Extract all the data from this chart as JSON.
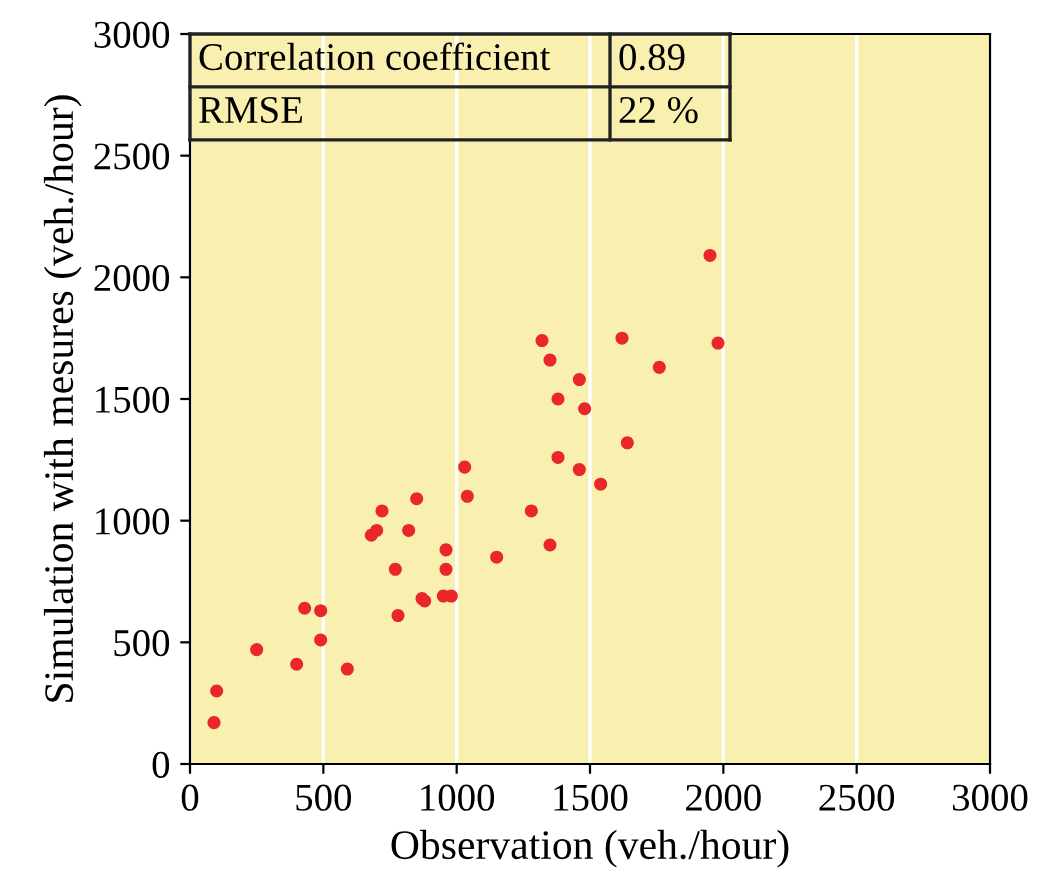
{
  "chart_data": {
    "type": "scatter",
    "xlabel": "Observation (veh./hour)",
    "ylabel": "Simulation with mesures (veh./hour)",
    "annotations": [
      "Correlation coefficient",
      "0.89",
      "RMSE",
      "22 %"
    ],
    "x": [
      90,
      100,
      250,
      400,
      430,
      490,
      490,
      590,
      780,
      770,
      870,
      880,
      950,
      980,
      960,
      960,
      820,
      680,
      700,
      720,
      850,
      1040,
      1030,
      1150,
      1280,
      1350,
      1460,
      1950,
      1980,
      1760,
      1620,
      1320,
      1350,
      1460,
      1380,
      1480,
      1640,
      1380,
      1540
    ],
    "values": [
      170,
      300,
      470,
      410,
      640,
      630,
      510,
      390,
      610,
      800,
      680,
      670,
      690,
      690,
      800,
      880,
      960,
      940,
      960,
      1040,
      1090,
      1100,
      1220,
      850,
      1040,
      900,
      1210,
      2090,
      1730,
      1630,
      1750,
      1740,
      1660,
      1580,
      1500,
      1460,
      1320,
      1260,
      1150
    ],
    "color": "#e8262b",
    "marker": "circle",
    "grid": "x",
    "xlim": [
      0,
      3000
    ],
    "xticks": [
      0,
      500,
      1000,
      1500,
      2000,
      2500,
      3000
    ],
    "ylim": [
      0,
      3000
    ],
    "yticks": [
      0,
      500,
      1000,
      1500,
      2000,
      2500,
      3000
    ]
  }
}
